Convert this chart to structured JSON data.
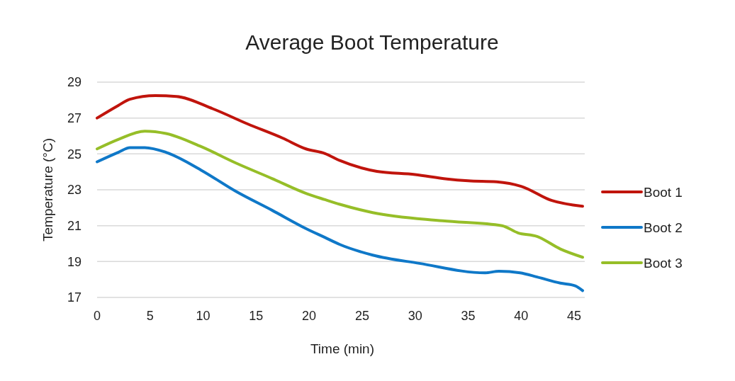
{
  "chart_data": {
    "type": "line",
    "title": "Average Boot Temperature",
    "xlabel": "Time (min)",
    "ylabel": "Temperature (°C)",
    "xlim": [
      0,
      46
    ],
    "xticks": [
      0,
      5,
      10,
      15,
      20,
      25,
      30,
      35,
      40,
      45
    ],
    "ylim": [
      17,
      29
    ],
    "yticks": [
      17,
      19,
      21,
      23,
      25,
      27,
      29
    ],
    "grid": "y",
    "legend": "right",
    "marker": "none",
    "line_style": "solid",
    "series": [
      {
        "name": "Boot 1",
        "color": "#c0140c",
        "x": [
          0,
          2,
          3.1,
          5.5,
          7.5,
          10.9,
          14.2,
          17.5,
          19.7,
          21.5,
          22.9,
          26.4,
          30,
          33,
          35,
          37.7,
          40,
          42.9,
          45.8
        ],
        "values": [
          27.0,
          27.7,
          28.05,
          28.25,
          28.2,
          27.52,
          26.67,
          25.88,
          25.28,
          25.02,
          24.63,
          24.03,
          23.85,
          23.6,
          23.5,
          23.44,
          23.19,
          22.4,
          22.08
        ]
      },
      {
        "name": "Boot 2",
        "color": "#0f78c8",
        "x": [
          0,
          2,
          3.1,
          4.5,
          6.5,
          9.8,
          13.1,
          16.5,
          19.8,
          21.5,
          22.9,
          26,
          30.4,
          36.6,
          37.9,
          39.9,
          41.5,
          43.7,
          45.1,
          45.8
        ],
        "values": [
          24.56,
          25.09,
          25.35,
          25.35,
          25.09,
          24.1,
          22.91,
          21.86,
          20.81,
          20.34,
          19.95,
          19.36,
          18.9,
          18.37,
          18.46,
          18.37,
          18.14,
          17.8,
          17.65,
          17.38
        ]
      },
      {
        "name": "Boot 3",
        "color": "#96be28",
        "x": [
          0,
          2,
          4.5,
          6.5,
          9.8,
          13.1,
          16.5,
          19.8,
          21.5,
          22.9,
          26,
          32.6,
          38.2,
          39.7,
          41.5,
          43.7,
          45.8
        ],
        "values": [
          25.28,
          25.81,
          26.27,
          26.14,
          25.41,
          24.49,
          23.63,
          22.78,
          22.45,
          22.19,
          21.73,
          21.27,
          21.0,
          20.6,
          20.4,
          19.7,
          19.24
        ]
      }
    ]
  }
}
